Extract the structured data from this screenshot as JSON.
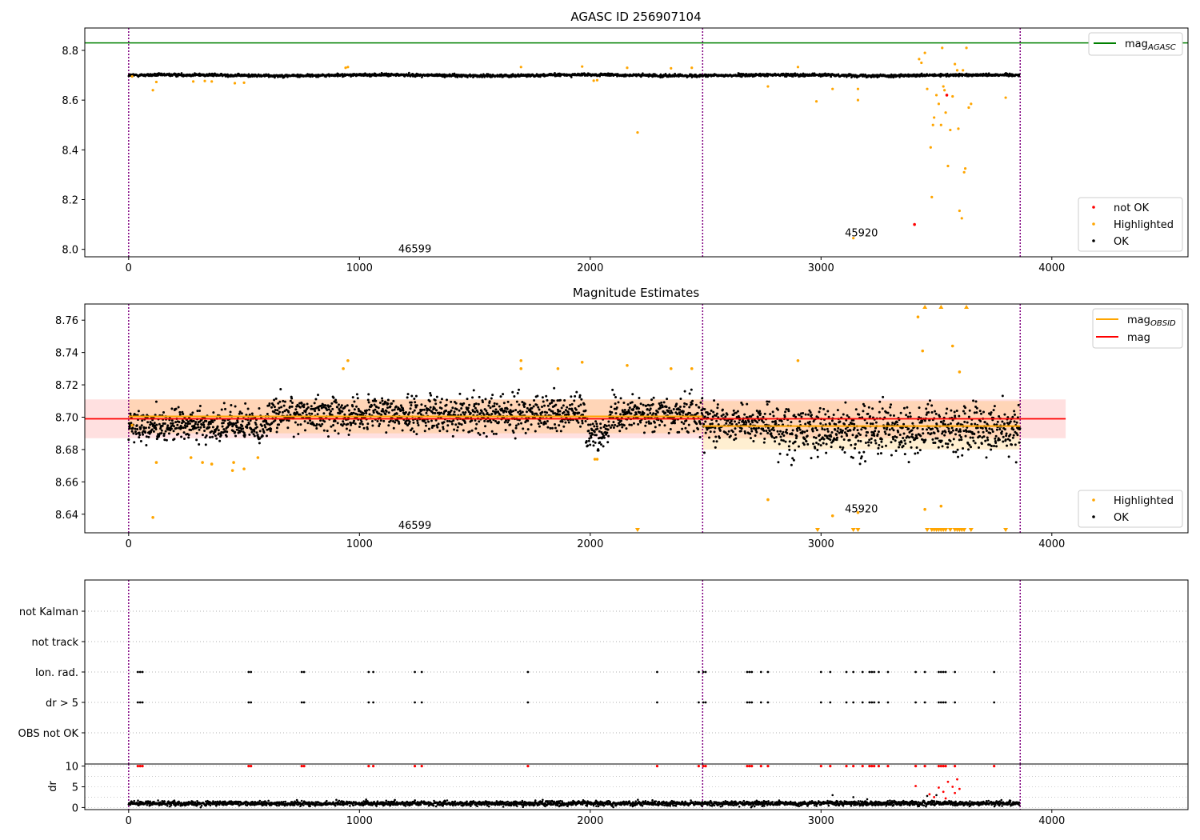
{
  "chart_data": [
    {
      "id": "panel_mag",
      "type": "scatter",
      "title": "AGASC ID 256907104",
      "xlim": [
        -190,
        4590
      ],
      "ylim": [
        7.97,
        8.89
      ],
      "xticks": [
        0,
        1000,
        2000,
        3000,
        4000
      ],
      "yticks": [
        8.0,
        8.2,
        8.4,
        8.6,
        8.8
      ],
      "ytick_labels": [
        "8.0",
        "8.2",
        "8.4",
        "8.6",
        "8.8"
      ],
      "grid": false,
      "baseline": {
        "x_start": 0,
        "x_end": 3860,
        "center": 8.7,
        "amplitude": 0.012
      },
      "reference_lines": [
        {
          "name": "mag",
          "subscript": "AGASC",
          "y": 8.83,
          "color": "#008000"
        }
      ],
      "vlines": [
        0,
        2487,
        3863
      ],
      "obsid_labels": [
        {
          "text": "46599",
          "x": 1240,
          "y": 8.0
        },
        {
          "text": "45920",
          "x": 3175,
          "y": 8.065
        }
      ],
      "highlighted": [
        [
          15,
          8.695
        ],
        [
          105,
          8.64
        ],
        [
          120,
          8.673
        ],
        [
          280,
          8.675
        ],
        [
          330,
          8.677
        ],
        [
          360,
          8.675
        ],
        [
          460,
          8.668
        ],
        [
          500,
          8.67
        ],
        [
          940,
          8.73
        ],
        [
          950,
          8.733
        ],
        [
          1700,
          8.733
        ],
        [
          1965,
          8.735
        ],
        [
          2015,
          8.678
        ],
        [
          2030,
          8.68
        ],
        [
          2160,
          8.73
        ],
        [
          2205,
          8.47
        ],
        [
          2350,
          8.728
        ],
        [
          2440,
          8.73
        ],
        [
          2770,
          8.655
        ],
        [
          2900,
          8.733
        ],
        [
          2980,
          8.595
        ],
        [
          3050,
          8.645
        ],
        [
          3140,
          8.045
        ],
        [
          3160,
          8.6
        ],
        [
          3160,
          8.645
        ],
        [
          3425,
          8.765
        ],
        [
          3435,
          8.75
        ],
        [
          3450,
          8.79
        ],
        [
          3460,
          8.645
        ],
        [
          3475,
          8.41
        ],
        [
          3480,
          8.21
        ],
        [
          3485,
          8.5
        ],
        [
          3490,
          8.53
        ],
        [
          3500,
          8.62
        ],
        [
          3510,
          8.585
        ],
        [
          3520,
          8.5
        ],
        [
          3525,
          8.81
        ],
        [
          3530,
          8.655
        ],
        [
          3535,
          8.64
        ],
        [
          3540,
          8.55
        ],
        [
          3550,
          8.335
        ],
        [
          3560,
          8.48
        ],
        [
          3570,
          8.615
        ],
        [
          3580,
          8.745
        ],
        [
          3590,
          8.72
        ],
        [
          3595,
          8.485
        ],
        [
          3600,
          8.155
        ],
        [
          3610,
          8.125
        ],
        [
          3615,
          8.72
        ],
        [
          3620,
          8.31
        ],
        [
          3625,
          8.325
        ],
        [
          3630,
          8.81
        ],
        [
          3640,
          8.57
        ],
        [
          3650,
          8.585
        ],
        [
          3800,
          8.61
        ]
      ],
      "not_ok": [
        [
          3405,
          8.1
        ],
        [
          3545,
          8.62
        ]
      ],
      "legend": {
        "loc": "lower right",
        "entries": [
          {
            "label": "not OK",
            "color": "#ff0000"
          },
          {
            "label": "Highlighted",
            "color": "#ffa500"
          },
          {
            "label": "OK",
            "color": "#000000"
          }
        ]
      },
      "top_legend": {
        "loc": "upper right",
        "label": "mag",
        "subscript": "AGASC",
        "color": "#008000"
      }
    },
    {
      "id": "panel_estimates",
      "type": "scatter",
      "title": "Magnitude Estimates",
      "xlim": [
        -190,
        4590
      ],
      "ylim": [
        8.6285,
        8.77
      ],
      "xticks": [
        0,
        1000,
        2000,
        3000,
        4000
      ],
      "yticks": [
        8.64,
        8.66,
        8.68,
        8.7,
        8.72,
        8.74,
        8.76
      ],
      "ytick_labels": [
        "8.64",
        "8.66",
        "8.68",
        "8.70",
        "8.72",
        "8.74",
        "8.76"
      ],
      "grid": false,
      "mag": {
        "name": "mag",
        "value": 8.699,
        "band_lo": 8.687,
        "band_hi": 8.711,
        "x_start": -190,
        "x_end": 4060,
        "color": "#ff0000"
      },
      "mag_obsid": [
        {
          "x_start": 0,
          "x_end": 2487,
          "value": 8.7005,
          "band_lo": 8.69,
          "band_hi": 8.711
        },
        {
          "x_start": 2487,
          "x_end": 3863,
          "value": 8.6945,
          "band_lo": 8.68,
          "band_hi": 8.71
        }
      ],
      "vlines": [
        0,
        2487,
        3863
      ],
      "obsid_labels": [
        {
          "text": "46599",
          "x": 1240,
          "y": 8.633
        },
        {
          "text": "45920",
          "x": 3175,
          "y": 8.643
        }
      ],
      "scatter_segments": [
        {
          "x_start": 0,
          "x_end": 600,
          "mean": 8.695,
          "sd": 0.008
        },
        {
          "x_start": 600,
          "x_end": 1980,
          "mean": 8.702,
          "sd": 0.0085
        },
        {
          "x_start": 1980,
          "x_end": 2080,
          "mean": 8.69,
          "sd": 0.008
        },
        {
          "x_start": 2080,
          "x_end": 2487,
          "mean": 8.702,
          "sd": 0.009
        },
        {
          "x_start": 2487,
          "x_end": 2800,
          "mean": 8.697,
          "sd": 0.01
        },
        {
          "x_start": 2800,
          "x_end": 3863,
          "mean": 8.692,
          "sd": 0.012
        }
      ],
      "highlighted": [
        [
          15,
          8.695
        ],
        [
          105,
          8.638
        ],
        [
          120,
          8.672
        ],
        [
          270,
          8.675
        ],
        [
          320,
          8.672
        ],
        [
          360,
          8.671
        ],
        [
          450,
          8.667
        ],
        [
          455,
          8.672
        ],
        [
          500,
          8.668
        ],
        [
          560,
          8.675
        ],
        [
          930,
          8.73
        ],
        [
          950,
          8.735
        ],
        [
          1700,
          8.735
        ],
        [
          1700,
          8.73
        ],
        [
          1860,
          8.73
        ],
        [
          1965,
          8.734
        ],
        [
          2020,
          8.674
        ],
        [
          2030,
          8.674
        ],
        [
          2160,
          8.732
        ],
        [
          2350,
          8.73
        ],
        [
          2440,
          8.73
        ],
        [
          2770,
          8.649
        ],
        [
          2900,
          8.735
        ],
        [
          3050,
          8.639
        ],
        [
          3160,
          8.641
        ],
        [
          3420,
          8.762
        ],
        [
          3440,
          8.741
        ],
        [
          3450,
          8.643
        ],
        [
          3520,
          8.645
        ],
        [
          3570,
          8.744
        ],
        [
          3600,
          8.728
        ]
      ],
      "clipped_up": [
        3450,
        3520,
        3630
      ],
      "clipped_down": [
        2205,
        2985,
        3140,
        3160,
        3460,
        3480,
        3490,
        3500,
        3510,
        3520,
        3530,
        3540,
        3560,
        3580,
        3590,
        3600,
        3610,
        3620,
        3650,
        3800
      ],
      "legend": {
        "loc": "lower right",
        "entries": [
          {
            "label": "Highlighted",
            "color": "#ffa500"
          },
          {
            "label": "OK",
            "color": "#000000"
          }
        ]
      },
      "top_legend": {
        "loc": "upper right",
        "entries": [
          {
            "label": "mag",
            "subscript": "OBSID",
            "color": "#ffa500"
          },
          {
            "label": "mag",
            "subscript": "",
            "color": "#ff0000"
          }
        ]
      }
    },
    {
      "id": "panel_flags",
      "type": "scatter",
      "xlim": [
        -190,
        4590
      ],
      "grid": true,
      "categories": [
        "not Kalman",
        "not track",
        "Ion. rad.",
        "dr > 5",
        "OBS not OK"
      ],
      "vlines": [
        0,
        2487,
        3863
      ],
      "flag_x": [
        40,
        50,
        60,
        520,
        530,
        750,
        760,
        1040,
        1060,
        1240,
        1270,
        1730,
        2290,
        2470,
        2490,
        2500,
        2680,
        2690,
        2700,
        2740,
        2770,
        3000,
        3040,
        3110,
        3140,
        3180,
        3210,
        3220,
        3230,
        3250,
        3290,
        3410,
        3450,
        3510,
        3520,
        3530,
        3540,
        3580,
        3750
      ],
      "flag_rows": [
        "Ion. rad.",
        "dr > 5"
      ]
    },
    {
      "id": "panel_dr",
      "type": "scatter",
      "ylabel": "dr",
      "xlim": [
        -190,
        4590
      ],
      "ylim": [
        -0.5,
        10.5
      ],
      "xticks": [
        0,
        1000,
        2000,
        3000,
        4000
      ],
      "yticks": [
        0,
        5,
        10
      ],
      "ytick_labels": [
        "0",
        "5",
        "10"
      ],
      "grid": true,
      "vlines": [
        0,
        2487,
        3863
      ],
      "baseline": {
        "x_start": 0,
        "x_end": 3860,
        "mean": 1.0,
        "sd": 0.4
      },
      "black_extra": [
        [
          3050,
          3.0
        ],
        [
          3140,
          2.5
        ],
        [
          3200,
          2.0
        ],
        [
          3460,
          2.8
        ],
        [
          3500,
          3.0
        ]
      ],
      "red_high": [
        [
          3410,
          5.2
        ],
        [
          3470,
          3.2
        ],
        [
          3490,
          2.5
        ],
        [
          3510,
          4.8
        ],
        [
          3530,
          3.8
        ],
        [
          3540,
          2.2
        ],
        [
          3550,
          6.2
        ],
        [
          3570,
          5.0
        ],
        [
          3580,
          3.5
        ],
        [
          3590,
          6.8
        ],
        [
          3600,
          4.5
        ]
      ],
      "red_top_x": [
        40,
        50,
        60,
        520,
        530,
        750,
        760,
        1040,
        1060,
        1240,
        1270,
        1730,
        2290,
        2470,
        2490,
        2500,
        2680,
        2690,
        2700,
        2740,
        2770,
        3000,
        3040,
        3110,
        3140,
        3180,
        3210,
        3220,
        3230,
        3250,
        3290,
        3410,
        3450,
        3510,
        3520,
        3530,
        3540,
        3580,
        3750
      ]
    }
  ]
}
